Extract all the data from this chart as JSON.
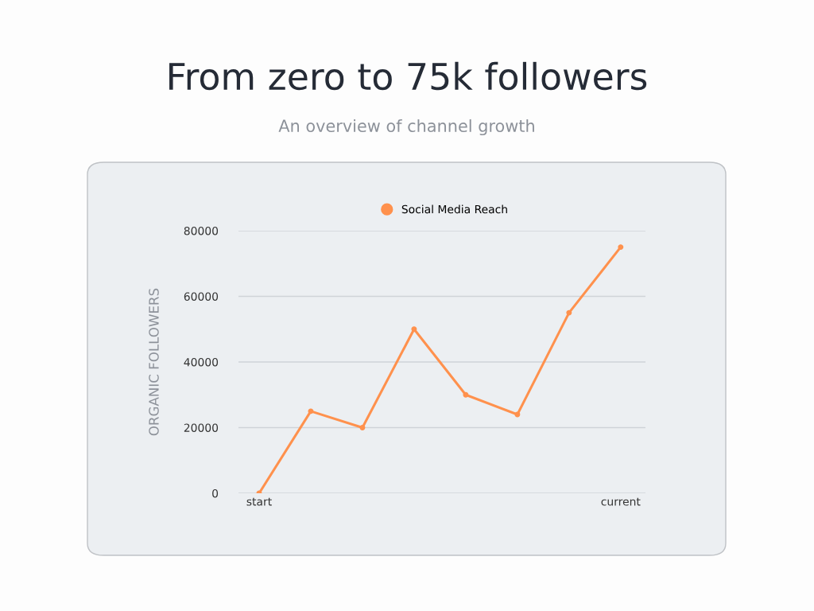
{
  "chart_data": {
    "type": "line",
    "title": "From zero to 75k followers",
    "subtitle": "An overview of channel growth",
    "ylabel": "ORGANIC FOLLOWERS",
    "categories": [
      "start",
      null,
      null,
      null,
      null,
      null,
      null,
      "current"
    ],
    "series": [
      {
        "name": "Social Media Reach",
        "color": "#ff914d",
        "values": [
          0,
          25000,
          20000,
          50000,
          30000,
          24000,
          55000,
          75000
        ]
      }
    ],
    "ylim": [
      0,
      80000
    ],
    "yticks": [
      0,
      20000,
      40000,
      60000,
      80000
    ],
    "grid": "y",
    "legend": "top",
    "marker": "circle",
    "line_style": "solid"
  }
}
